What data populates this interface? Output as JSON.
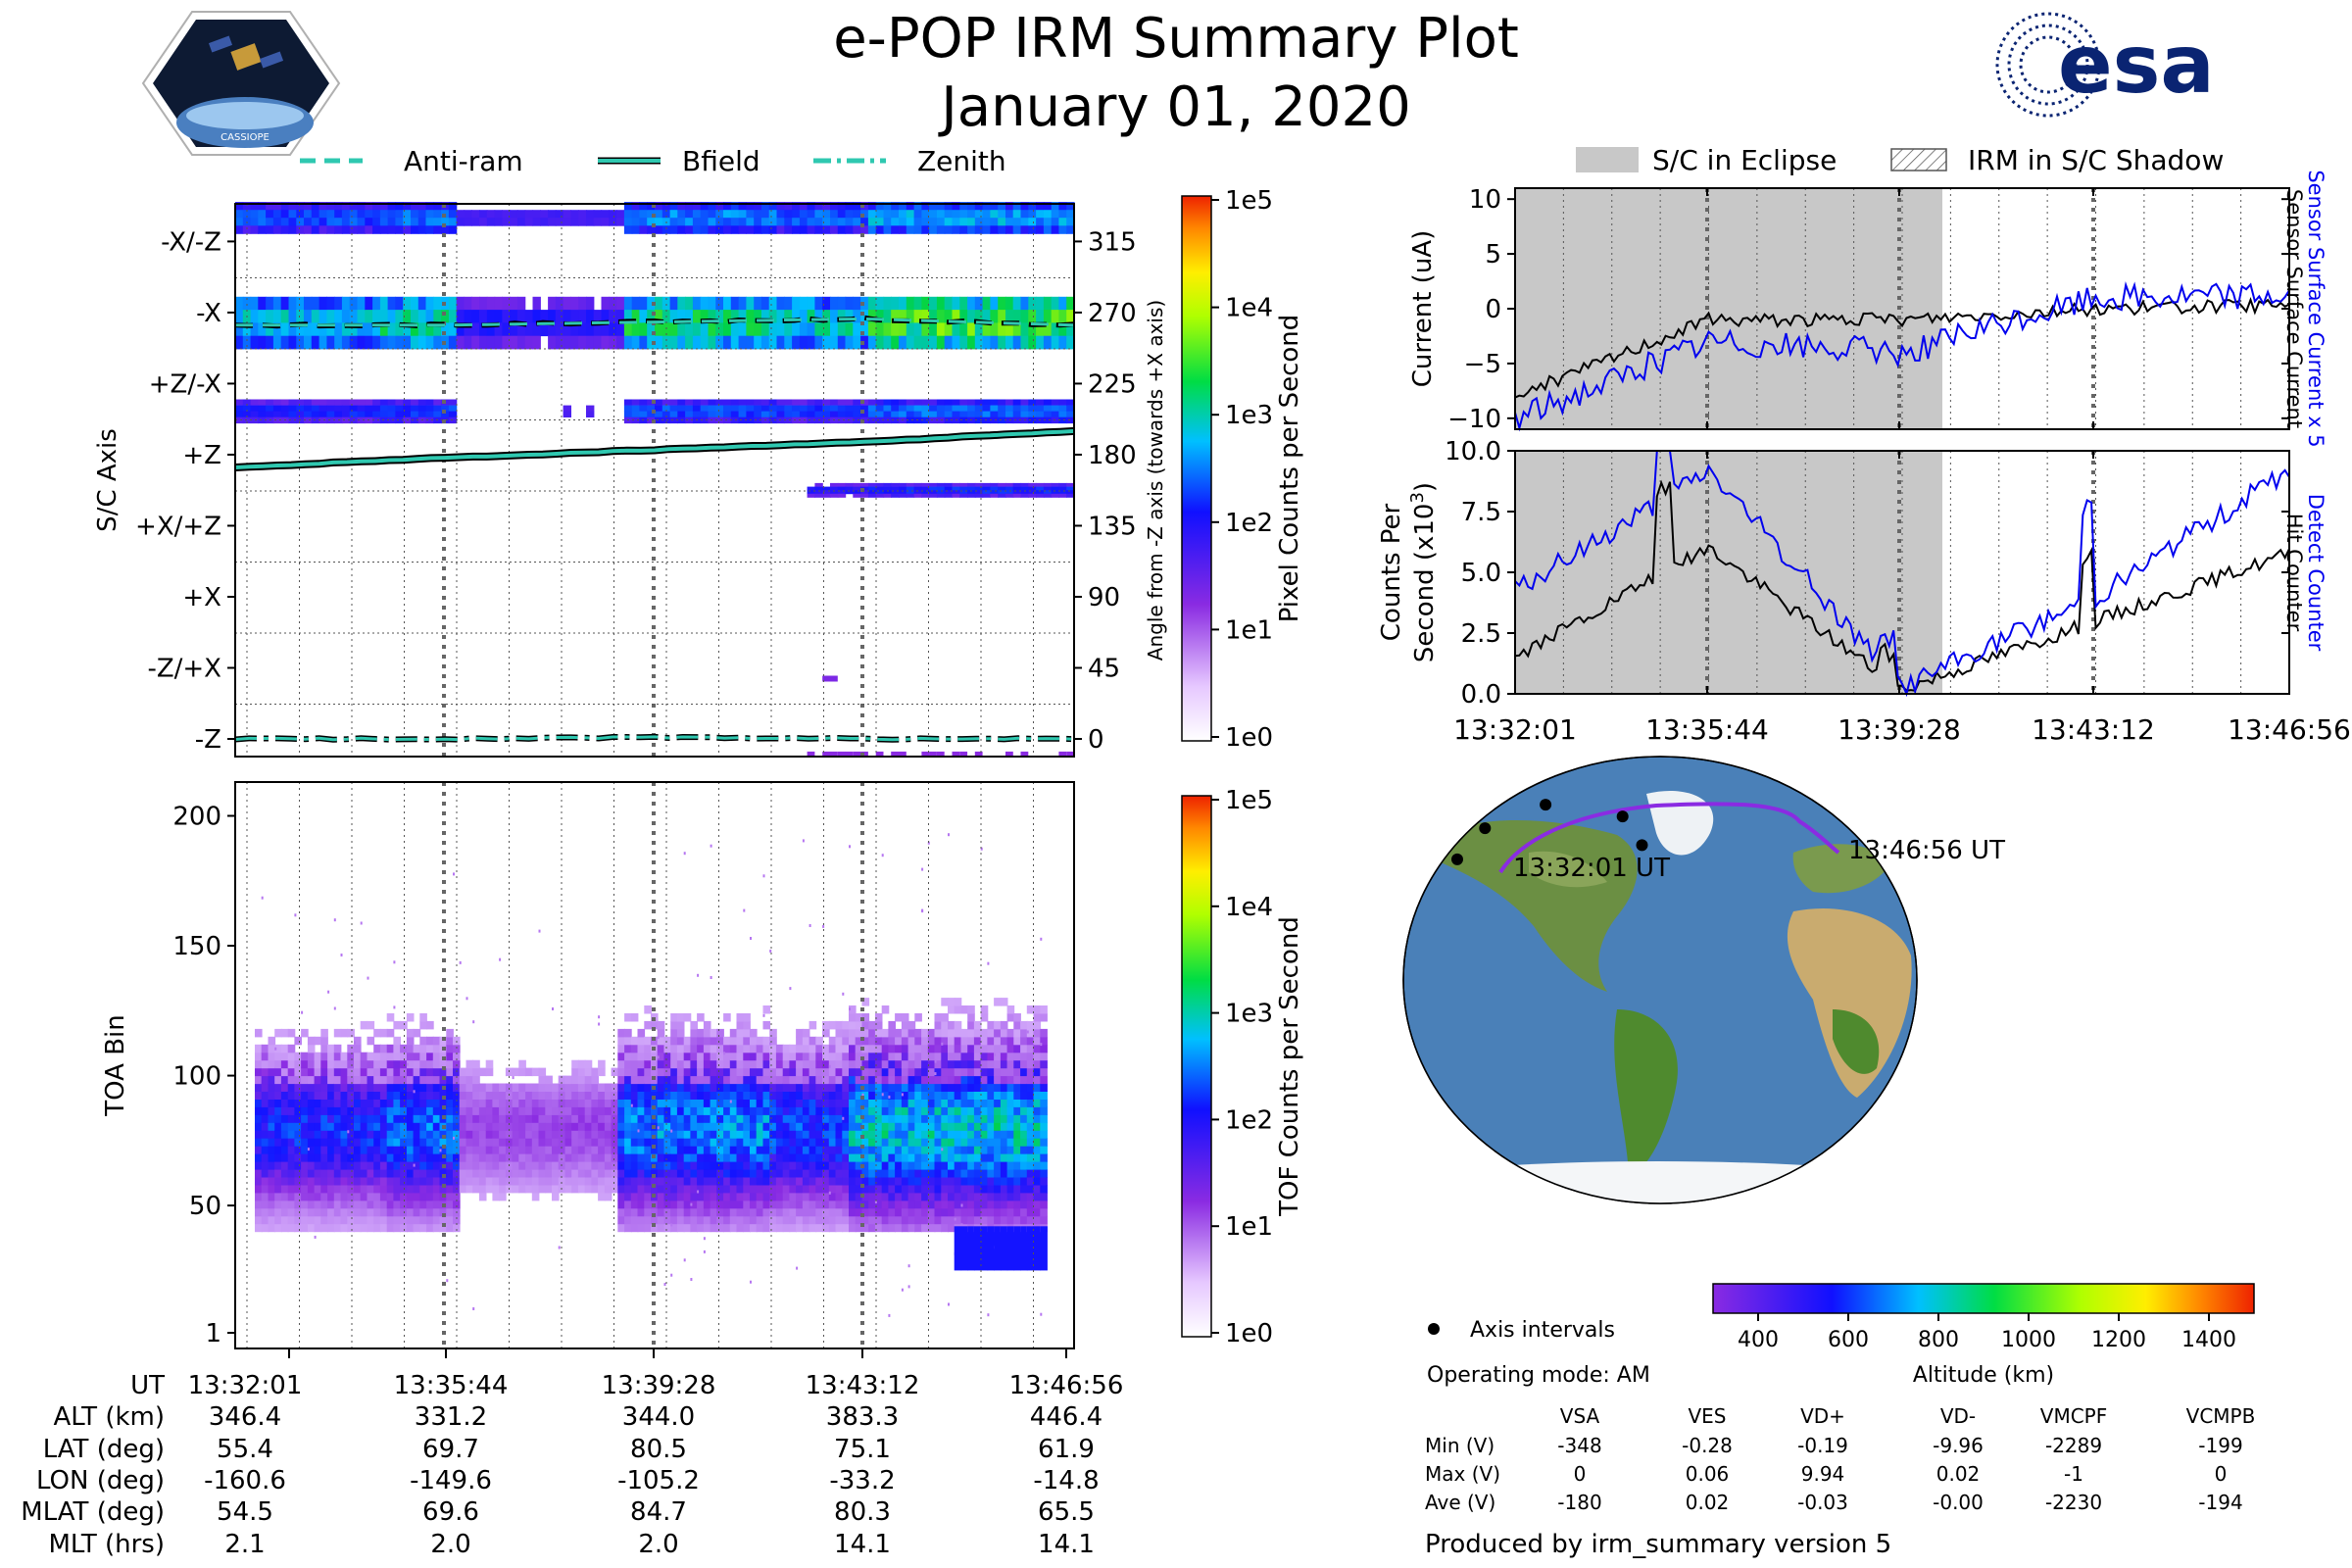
{
  "title": "e-POP IRM Summary Plot",
  "date": "January 01, 2020",
  "colors": {
    "accent": "#0000ee",
    "esa_blue": "#0a2472",
    "eclipse_gray": "#c8c8c8",
    "trace_teal": "#2fc8b0",
    "orbit_purple": "#8a2be2"
  },
  "logos": {
    "cassiope": "CASSIOPE",
    "esa": "esa"
  },
  "top_legend": [
    "Anti-ram",
    "Bfield",
    "Zenith"
  ],
  "right_legend": [
    "S/C in Eclipse",
    "IRM in S/C Shadow"
  ],
  "time_ticks": [
    "13:32:01",
    "13:35:44",
    "13:39:28",
    "13:43:12",
    "13:46:56"
  ],
  "chart_data": [
    {
      "type": "heatmap",
      "id": "sc_axis_pixels",
      "ylabel": "S/C Axis",
      "y2label": "Angle from -Z axis (towards +X axis)",
      "categories": [
        "-X/-Z",
        "-X",
        "+Z/-X",
        "+Z",
        "+X/+Z",
        "+X",
        "-Z/+X",
        "-Z"
      ],
      "right_ticks": [
        "315",
        "270",
        "225",
        "180",
        "135",
        "90",
        "45",
        "0"
      ],
      "ylim": [
        0,
        350
      ],
      "x": [
        "13:32:01",
        "13:35:44",
        "13:39:28",
        "13:43:12",
        "13:46:56"
      ],
      "series": [
        {
          "name": "Anti-ram",
          "values": [
            262,
            262,
            264,
            266,
            262
          ]
        },
        {
          "name": "Bfield",
          "values": [
            172,
            178,
            183,
            188,
            195
          ]
        },
        {
          "name": "Zenith",
          "values": [
            0,
            0,
            1,
            0,
            0
          ]
        }
      ],
      "colorbar": {
        "label": "Pixel Counts per Second",
        "ticks": [
          "1e5",
          "1e4",
          "1e3",
          "1e2",
          "1e1",
          "1e0"
        ]
      }
    },
    {
      "type": "heatmap",
      "id": "toa_tof",
      "ylabel": "TOA Bin",
      "yticks": [
        "1",
        "50",
        "100",
        "150",
        "200"
      ],
      "ylim": [
        1,
        210
      ],
      "x": [
        "13:32:01",
        "13:35:44",
        "13:39:28",
        "13:43:12",
        "13:46:56"
      ],
      "band_center_bin": 78,
      "colorbar": {
        "label": "TOF Counts per Second",
        "ticks": [
          "1e5",
          "1e4",
          "1e3",
          "1e2",
          "1e1",
          "1e0"
        ]
      }
    },
    {
      "type": "line",
      "id": "current",
      "ylabel": "Current (uA)",
      "yticks": [
        "10",
        "5",
        "0",
        "−5",
        "−10"
      ],
      "ylim": [
        -11,
        11
      ],
      "right_labels": [
        "Sensor Surface Current x 5",
        "Sensor Surface Current"
      ],
      "x": [
        "13:32:01",
        "13:35:44",
        "13:39:28",
        "13:43:12",
        "13:46:56"
      ],
      "series": [
        {
          "name": "Sensor Surface Current",
          "values": [
            -8,
            -1,
            -1,
            0,
            0.3
          ]
        },
        {
          "name": "Sensor Surface Current x 5",
          "values": [
            -10,
            -3,
            -4,
            1,
            1.3
          ]
        }
      ]
    },
    {
      "type": "line",
      "id": "counts",
      "ylabel": "Counts Per",
      "ylabel2": "Second (x10",
      "ylabel2_sup": "3",
      "ylabel2_end": ")",
      "yticks": [
        "10.0",
        "7.5",
        "5.0",
        "2.5",
        "0.0"
      ],
      "ylim": [
        0,
        10
      ],
      "right_labels": [
        "Detect Counter",
        "Hit Counter"
      ],
      "x": [
        "13:32:01",
        "13:35:44",
        "13:39:28",
        "13:43:12",
        "13:46:56"
      ],
      "series": [
        {
          "name": "Hit Counter",
          "values": [
            1.5,
            6.0,
            0.2,
            3.0,
            5.8
          ]
        },
        {
          "name": "Detect Counter",
          "values": [
            4.2,
            9.2,
            0.3,
            4.0,
            9.2
          ]
        }
      ]
    },
    {
      "type": "scatter",
      "id": "orbit_map",
      "start_label": "13:32:01 UT",
      "end_label": "13:46:56 UT",
      "lat": [
        55.4,
        69.7,
        80.5,
        75.1,
        61.9
      ],
      "lon": [
        -160.6,
        -149.6,
        -105.2,
        -33.2,
        -14.8
      ],
      "altitude_km": [
        346.4,
        331.2,
        344.0,
        383.3,
        446.4
      ],
      "colorbar": {
        "label": "Altitude (km)",
        "ticks": [
          "400",
          "600",
          "800",
          "1000",
          "1200",
          "1400"
        ]
      }
    }
  ],
  "footer": {
    "legend": "Axis intervals",
    "mode": "Operating mode: AM",
    "produced": "Produced by irm_summary version 5"
  },
  "ephemeris": {
    "labels": [
      "UT",
      "ALT (km)",
      "LAT (deg)",
      "LON (deg)",
      "MLAT (deg)",
      "MLT (hrs)"
    ],
    "columns": [
      [
        "13:32:01",
        "346.4",
        "55.4",
        "-160.6",
        "54.5",
        "2.1"
      ],
      [
        "13:35:44",
        "331.2",
        "69.7",
        "-149.6",
        "69.6",
        "2.0"
      ],
      [
        "13:39:28",
        "344.0",
        "80.5",
        "-105.2",
        "84.7",
        "2.0"
      ],
      [
        "13:43:12",
        "383.3",
        "75.1",
        "-33.2",
        "80.3",
        "14.1"
      ],
      [
        "13:46:56",
        "446.4",
        "61.9",
        "-14.8",
        "65.5",
        "14.1"
      ]
    ]
  },
  "voltages": {
    "headers": [
      "VSA",
      "VES",
      "VD+",
      "VD-",
      "VMCPF",
      "VCMPB"
    ],
    "rows": [
      {
        "label": "Min (V)",
        "values": [
          "-348",
          "-0.28",
          "-0.19",
          "-9.96",
          "-2289",
          "-199"
        ]
      },
      {
        "label": "Max (V)",
        "values": [
          "0",
          "0.06",
          "9.94",
          "0.02",
          "-1",
          "0"
        ]
      },
      {
        "label": "Ave (V)",
        "values": [
          "-180",
          "0.02",
          "-0.03",
          "-0.00",
          "-2230",
          "-194"
        ]
      }
    ]
  }
}
